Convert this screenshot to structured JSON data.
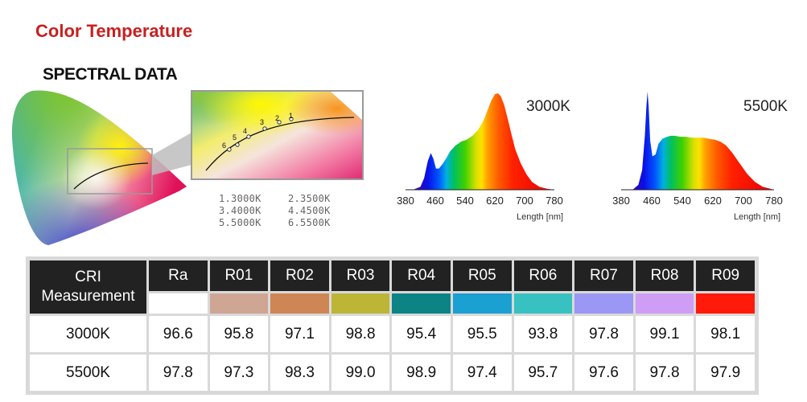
{
  "title": "Color Temperature",
  "subtitle": "SPECTRAL DATA",
  "zoom_points": [
    "1",
    "2",
    "3",
    "4",
    "5",
    "6"
  ],
  "cct_list": [
    "1.3000K",
    "2.3500K",
    "3.4000K",
    "4.4500K",
    "5.5000K",
    "6.5500K"
  ],
  "chart_data": [
    {
      "type": "area",
      "title": "3000K",
      "xlabel": "Length [nm]",
      "xlim": [
        380,
        780
      ],
      "xticks": [
        380,
        460,
        540,
        620,
        700,
        780
      ],
      "x": [
        400,
        420,
        430,
        440,
        448,
        455,
        462,
        470,
        480,
        490,
        500,
        515,
        530,
        545,
        560,
        575,
        590,
        600,
        610,
        620,
        628,
        636,
        645,
        655,
        665,
        675,
        690,
        705,
        720,
        740,
        760,
        780
      ],
      "y": [
        0.0,
        0.03,
        0.12,
        0.3,
        0.38,
        0.32,
        0.22,
        0.22,
        0.27,
        0.33,
        0.4,
        0.46,
        0.5,
        0.52,
        0.56,
        0.62,
        0.72,
        0.82,
        0.92,
        0.99,
        1.0,
        0.97,
        0.88,
        0.73,
        0.57,
        0.42,
        0.27,
        0.16,
        0.08,
        0.03,
        0.01,
        0.0
      ]
    },
    {
      "type": "area",
      "title": "5500K",
      "xlabel": "Length [nm]",
      "xlim": [
        380,
        780
      ],
      "xticks": [
        380,
        460,
        540,
        620,
        700,
        780
      ],
      "x": [
        410,
        425,
        435,
        442,
        446,
        449,
        452,
        456,
        462,
        470,
        478,
        488,
        500,
        510,
        520,
        535,
        550,
        565,
        580,
        595,
        610,
        625,
        640,
        655,
        670,
        690,
        710,
        730,
        750,
        770,
        780
      ],
      "y": [
        0.0,
        0.05,
        0.2,
        0.55,
        0.85,
        1.0,
        0.85,
        0.5,
        0.34,
        0.36,
        0.47,
        0.52,
        0.54,
        0.55,
        0.55,
        0.54,
        0.54,
        0.53,
        0.53,
        0.53,
        0.52,
        0.51,
        0.49,
        0.45,
        0.38,
        0.27,
        0.16,
        0.08,
        0.03,
        0.01,
        0.0
      ]
    },
    {
      "type": "table",
      "corner_header": [
        "CRI",
        "Measurement"
      ],
      "columns": [
        "Ra",
        "R01",
        "R02",
        "R03",
        "R04",
        "R05",
        "R06",
        "R07",
        "R08",
        "R09"
      ],
      "swatch_colors": [
        "#ffffff",
        "#cfa594",
        "#cd8654",
        "#bdb536",
        "#0c8485",
        "#1aa0d1",
        "#37c2c1",
        "#9b97f5",
        "#cf9df5",
        "#ff1a0a"
      ],
      "rows": [
        {
          "label": "3000K",
          "values": [
            "96.6",
            "95.8",
            "97.1",
            "98.8",
            "95.4",
            "95.5",
            "93.8",
            "97.8",
            "99.1",
            "98.1"
          ]
        },
        {
          "label": "5500K",
          "values": [
            "97.8",
            "97.3",
            "98.3",
            "99.0",
            "98.9",
            "97.4",
            "95.7",
            "97.6",
            "97.8",
            "97.9"
          ]
        }
      ]
    }
  ]
}
